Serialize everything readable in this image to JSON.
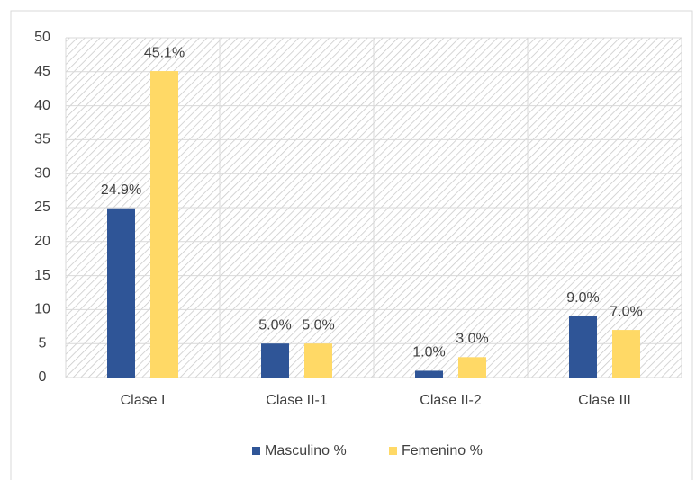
{
  "chart_data": {
    "type": "bar",
    "categories": [
      "Clase I",
      "Clase II-1",
      "Clase II-2",
      "Clase III"
    ],
    "series": [
      {
        "name": "Masculino %",
        "color": "#2f5597",
        "values": [
          24.9,
          5.0,
          1.0,
          9.0
        ],
        "value_labels": [
          "24.9%",
          "5.0%",
          "1.0%",
          "9.0%"
        ]
      },
      {
        "name": "Femenino %",
        "color": "#ffd966",
        "values": [
          45.1,
          5.0,
          3.0,
          7.0
        ],
        "value_labels": [
          "45.1%",
          "5.0%",
          "3.0%",
          "7.0%"
        ]
      }
    ],
    "ylim": [
      0,
      50
    ],
    "yticks": [
      0,
      5,
      10,
      15,
      20,
      25,
      30,
      35,
      40,
      45,
      50
    ],
    "grid": true,
    "legend": "bottom"
  }
}
